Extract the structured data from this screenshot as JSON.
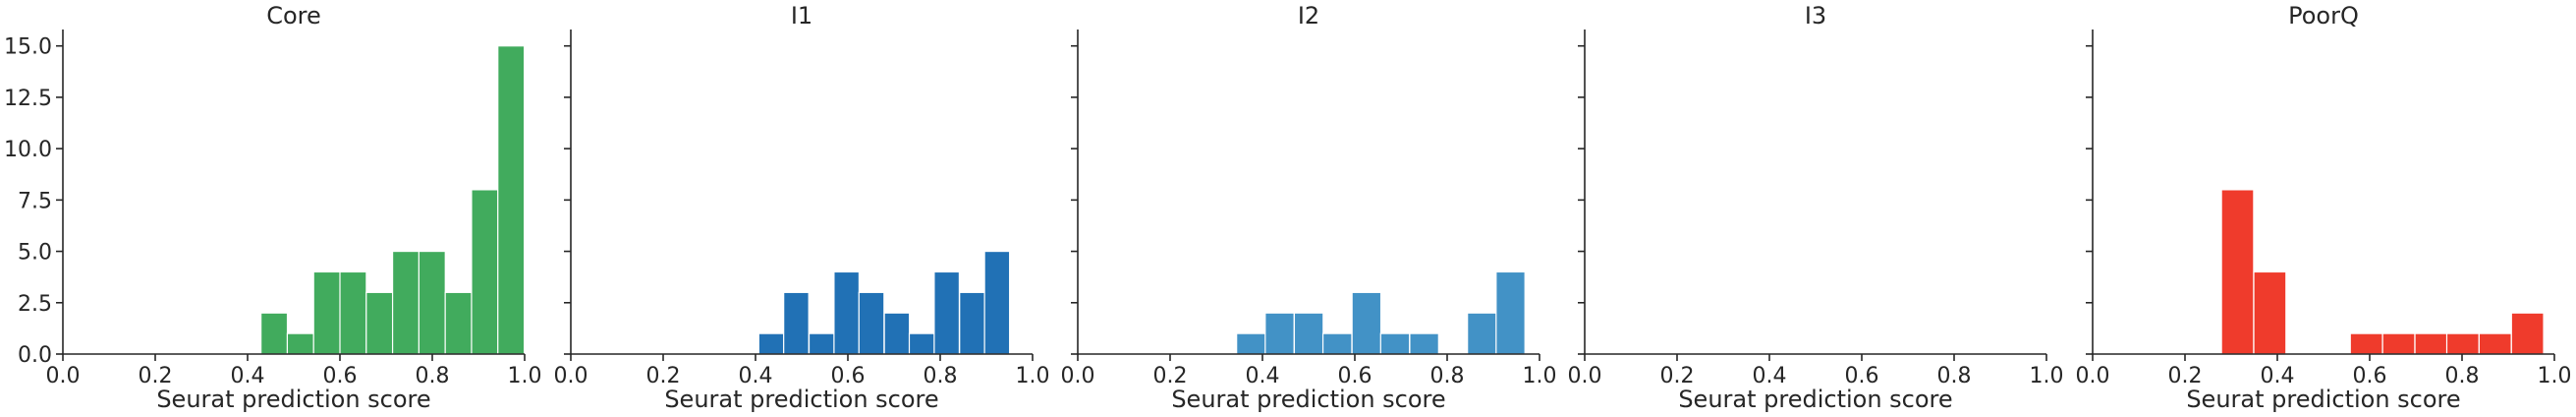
{
  "figure": {
    "type": "bar-histograms"
  },
  "chart_data": [
    {
      "type": "bar",
      "title": "Core",
      "xlabel": "Seurat prediction score",
      "ylabel": "",
      "xlim": [
        0.0,
        1.0
      ],
      "ylim": [
        0,
        15.8
      ],
      "x_ticks": [
        "0.0",
        "0.2",
        "0.4",
        "0.6",
        "0.8",
        "1.0"
      ],
      "y_ticks": [
        "0.0",
        "2.5",
        "5.0",
        "7.5",
        "10.0",
        "12.5",
        "15.0"
      ],
      "show_y_tick_labels": true,
      "bin_width": 0.0572,
      "color": "#41ab5d",
      "bars": [
        {
          "x": 0.429,
          "value": 2
        },
        {
          "x": 0.486,
          "value": 1
        },
        {
          "x": 0.543,
          "value": 4
        },
        {
          "x": 0.6,
          "value": 4
        },
        {
          "x": 0.657,
          "value": 3
        },
        {
          "x": 0.714,
          "value": 5
        },
        {
          "x": 0.771,
          "value": 5
        },
        {
          "x": 0.828,
          "value": 3
        },
        {
          "x": 0.885,
          "value": 8
        },
        {
          "x": 0.942,
          "value": 15
        }
      ]
    },
    {
      "type": "bar",
      "title": "I1",
      "xlabel": "Seurat prediction score",
      "ylabel": "",
      "xlim": [
        0.0,
        1.0
      ],
      "ylim": [
        0,
        15.8
      ],
      "x_ticks": [
        "0.0",
        "0.2",
        "0.4",
        "0.6",
        "0.8",
        "1.0"
      ],
      "y_ticks": [
        "0.0",
        "2.5",
        "5.0",
        "7.5",
        "10.0",
        "12.5",
        "15.0"
      ],
      "show_y_tick_labels": false,
      "bin_width": 0.0543,
      "color": "#2171b5",
      "bars": [
        {
          "x": 0.407,
          "value": 1
        },
        {
          "x": 0.461,
          "value": 3
        },
        {
          "x": 0.516,
          "value": 1
        },
        {
          "x": 0.57,
          "value": 4
        },
        {
          "x": 0.624,
          "value": 3
        },
        {
          "x": 0.679,
          "value": 2
        },
        {
          "x": 0.733,
          "value": 1
        },
        {
          "x": 0.787,
          "value": 4
        },
        {
          "x": 0.842,
          "value": 3
        },
        {
          "x": 0.896,
          "value": 5
        }
      ]
    },
    {
      "type": "bar",
      "title": "I2",
      "xlabel": "Seurat prediction score",
      "ylabel": "",
      "xlim": [
        0.0,
        1.0
      ],
      "ylim": [
        0,
        15.8
      ],
      "x_ticks": [
        "0.0",
        "0.2",
        "0.4",
        "0.6",
        "0.8",
        "1.0"
      ],
      "y_ticks": [
        "0.0",
        "2.5",
        "5.0",
        "7.5",
        "10.0",
        "12.5",
        "15.0"
      ],
      "show_y_tick_labels": false,
      "bin_width": 0.0625,
      "color": "#4292c6",
      "bars": [
        {
          "x": 0.344,
          "value": 1
        },
        {
          "x": 0.406,
          "value": 2
        },
        {
          "x": 0.469,
          "value": 2
        },
        {
          "x": 0.531,
          "value": 1
        },
        {
          "x": 0.594,
          "value": 3
        },
        {
          "x": 0.656,
          "value": 1
        },
        {
          "x": 0.719,
          "value": 1
        },
        {
          "x": 0.781,
          "value": 0
        },
        {
          "x": 0.844,
          "value": 2
        },
        {
          "x": 0.906,
          "value": 4
        }
      ]
    },
    {
      "type": "bar",
      "title": "I3",
      "xlabel": "Seurat prediction score",
      "ylabel": "",
      "xlim": [
        0.0,
        1.0
      ],
      "ylim": [
        0,
        15.8
      ],
      "x_ticks": [
        "0.0",
        "0.2",
        "0.4",
        "0.6",
        "0.8",
        "1.0"
      ],
      "y_ticks": [
        "0.0",
        "2.5",
        "5.0",
        "7.5",
        "10.0",
        "12.5",
        "15.0"
      ],
      "show_y_tick_labels": false,
      "bin_width": 0.1,
      "color": "#6baed6",
      "bars": []
    },
    {
      "type": "bar",
      "title": "PoorQ",
      "xlabel": "Seurat prediction score",
      "ylabel": "",
      "xlim": [
        0.0,
        1.0
      ],
      "ylim": [
        0,
        15.8
      ],
      "x_ticks": [
        "0.0",
        "0.2",
        "0.4",
        "0.6",
        "0.8",
        "1.0"
      ],
      "y_ticks": [
        "0.0",
        "2.5",
        "5.0",
        "7.5",
        "10.0",
        "12.5",
        "15.0"
      ],
      "show_y_tick_labels": false,
      "bin_width": 0.0697,
      "color": "#ef3b2c",
      "bars": [
        {
          "x": 0.279,
          "value": 8
        },
        {
          "x": 0.349,
          "value": 4
        },
        {
          "x": 0.419,
          "value": 0
        },
        {
          "x": 0.489,
          "value": 0
        },
        {
          "x": 0.558,
          "value": 1
        },
        {
          "x": 0.628,
          "value": 1
        },
        {
          "x": 0.698,
          "value": 1
        },
        {
          "x": 0.767,
          "value": 1
        },
        {
          "x": 0.837,
          "value": 1
        },
        {
          "x": 0.907,
          "value": 2
        }
      ]
    }
  ]
}
